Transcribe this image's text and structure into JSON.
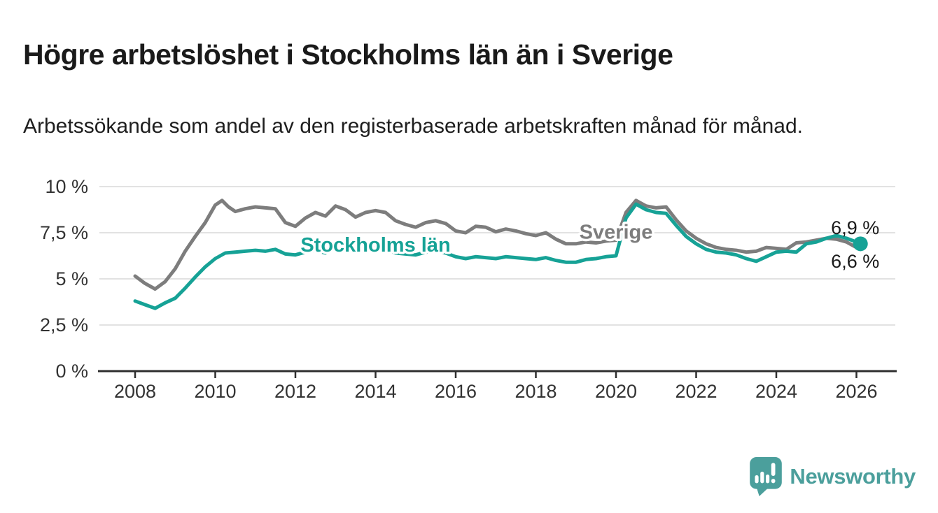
{
  "header": {
    "title": "Högre arbetslöshet i Stockholms län än i Sverige",
    "subtitle": "Arbetssökande som andel av den registerbaserade arbetskraften månad för månad."
  },
  "footer": {
    "brand": "Newsworthy",
    "brand_color": "#4b9f9c"
  },
  "chart_data": {
    "type": "line",
    "title": "Högre arbetslöshet i Stockholms län än i Sverige",
    "unit": "%",
    "grid": true,
    "x_axis": {
      "ticks": [
        2008,
        2010,
        2012,
        2014,
        2016,
        2018,
        2020,
        2022,
        2024,
        2026
      ],
      "range": [
        2007.1,
        2027
      ]
    },
    "y_axis": {
      "range": [
        0,
        10
      ],
      "ticks": [
        {
          "value": 0,
          "label": "0 %"
        },
        {
          "value": 2.5,
          "label": "2,5 %"
        },
        {
          "value": 5,
          "label": "5 %"
        },
        {
          "value": 7.5,
          "label": "7,5 %"
        },
        {
          "value": 10,
          "label": "10 %"
        }
      ]
    },
    "colors": {
      "sverige": "#7d7d7d",
      "stockholm": "#16a296",
      "grid": "#e2e2e2",
      "axis": "#2f2f2f"
    },
    "series": [
      {
        "name": "Sverige",
        "color": "#7d7d7d",
        "end_label": "6,6 %",
        "end_dot": false,
        "inline_label": {
          "text": "Sverige",
          "year": 2020.0,
          "value": 7.55
        },
        "points": [
          [
            2008.0,
            5.15
          ],
          [
            2008.25,
            4.75
          ],
          [
            2008.5,
            4.45
          ],
          [
            2008.75,
            4.85
          ],
          [
            2009.0,
            5.55
          ],
          [
            2009.25,
            6.5
          ],
          [
            2009.5,
            7.3
          ],
          [
            2009.75,
            8.05
          ],
          [
            2010.0,
            9.0
          ],
          [
            2010.17,
            9.25
          ],
          [
            2010.33,
            8.9
          ],
          [
            2010.5,
            8.65
          ],
          [
            2010.75,
            8.8
          ],
          [
            2011.0,
            8.9
          ],
          [
            2011.25,
            8.85
          ],
          [
            2011.5,
            8.8
          ],
          [
            2011.75,
            8.05
          ],
          [
            2012.0,
            7.85
          ],
          [
            2012.25,
            8.3
          ],
          [
            2012.5,
            8.6
          ],
          [
            2012.75,
            8.4
          ],
          [
            2013.0,
            8.95
          ],
          [
            2013.25,
            8.75
          ],
          [
            2013.5,
            8.35
          ],
          [
            2013.75,
            8.6
          ],
          [
            2014.0,
            8.7
          ],
          [
            2014.25,
            8.6
          ],
          [
            2014.5,
            8.15
          ],
          [
            2014.75,
            7.95
          ],
          [
            2015.0,
            7.8
          ],
          [
            2015.25,
            8.05
          ],
          [
            2015.5,
            8.15
          ],
          [
            2015.75,
            8.0
          ],
          [
            2016.0,
            7.6
          ],
          [
            2016.25,
            7.5
          ],
          [
            2016.5,
            7.85
          ],
          [
            2016.75,
            7.8
          ],
          [
            2017.0,
            7.55
          ],
          [
            2017.25,
            7.7
          ],
          [
            2017.5,
            7.6
          ],
          [
            2017.75,
            7.45
          ],
          [
            2018.0,
            7.35
          ],
          [
            2018.25,
            7.5
          ],
          [
            2018.5,
            7.15
          ],
          [
            2018.75,
            6.9
          ],
          [
            2019.0,
            6.9
          ],
          [
            2019.25,
            7.0
          ],
          [
            2019.5,
            6.95
          ],
          [
            2019.75,
            7.05
          ],
          [
            2020.0,
            7.1
          ],
          [
            2020.25,
            8.6
          ],
          [
            2020.5,
            9.25
          ],
          [
            2020.75,
            8.95
          ],
          [
            2021.0,
            8.85
          ],
          [
            2021.25,
            8.9
          ],
          [
            2021.5,
            8.2
          ],
          [
            2021.75,
            7.6
          ],
          [
            2022.0,
            7.2
          ],
          [
            2022.25,
            6.9
          ],
          [
            2022.5,
            6.7
          ],
          [
            2022.75,
            6.6
          ],
          [
            2023.0,
            6.55
          ],
          [
            2023.25,
            6.45
          ],
          [
            2023.5,
            6.5
          ],
          [
            2023.75,
            6.7
          ],
          [
            2024.0,
            6.65
          ],
          [
            2024.25,
            6.6
          ],
          [
            2024.5,
            6.95
          ],
          [
            2024.75,
            7.0
          ],
          [
            2025.0,
            7.1
          ],
          [
            2025.25,
            7.2
          ],
          [
            2025.5,
            7.15
          ],
          [
            2025.75,
            7.0
          ],
          [
            2026.0,
            6.7
          ],
          [
            2026.1,
            6.6
          ]
        ]
      },
      {
        "name": "Stockholms län",
        "color": "#16a296",
        "end_label": "6,9 %",
        "end_dot": true,
        "inline_label": {
          "text": "Stockholms län",
          "year": 2014.0,
          "value": 6.85
        },
        "points": [
          [
            2008.0,
            3.8
          ],
          [
            2008.25,
            3.6
          ],
          [
            2008.5,
            3.4
          ],
          [
            2008.75,
            3.7
          ],
          [
            2009.0,
            3.95
          ],
          [
            2009.25,
            4.5
          ],
          [
            2009.5,
            5.1
          ],
          [
            2009.75,
            5.65
          ],
          [
            2010.0,
            6.1
          ],
          [
            2010.25,
            6.4
          ],
          [
            2010.5,
            6.45
          ],
          [
            2010.75,
            6.5
          ],
          [
            2011.0,
            6.55
          ],
          [
            2011.25,
            6.5
          ],
          [
            2011.5,
            6.6
          ],
          [
            2011.75,
            6.35
          ],
          [
            2012.0,
            6.3
          ],
          [
            2012.25,
            6.45
          ],
          [
            2012.5,
            6.55
          ],
          [
            2012.75,
            6.4
          ],
          [
            2013.0,
            6.65
          ],
          [
            2013.25,
            6.6
          ],
          [
            2013.5,
            6.5
          ],
          [
            2013.75,
            6.6
          ],
          [
            2014.0,
            6.7
          ],
          [
            2014.25,
            6.6
          ],
          [
            2014.5,
            6.4
          ],
          [
            2014.75,
            6.35
          ],
          [
            2015.0,
            6.3
          ],
          [
            2015.25,
            6.45
          ],
          [
            2015.5,
            6.5
          ],
          [
            2015.75,
            6.4
          ],
          [
            2016.0,
            6.2
          ],
          [
            2016.25,
            6.1
          ],
          [
            2016.5,
            6.2
          ],
          [
            2016.75,
            6.15
          ],
          [
            2017.0,
            6.1
          ],
          [
            2017.25,
            6.2
          ],
          [
            2017.5,
            6.15
          ],
          [
            2017.75,
            6.1
          ],
          [
            2018.0,
            6.05
          ],
          [
            2018.25,
            6.15
          ],
          [
            2018.5,
            6.0
          ],
          [
            2018.75,
            5.9
          ],
          [
            2019.0,
            5.9
          ],
          [
            2019.25,
            6.05
          ],
          [
            2019.5,
            6.1
          ],
          [
            2019.75,
            6.2
          ],
          [
            2020.0,
            6.25
          ],
          [
            2020.25,
            8.3
          ],
          [
            2020.5,
            9.05
          ],
          [
            2020.75,
            8.75
          ],
          [
            2021.0,
            8.6
          ],
          [
            2021.25,
            8.55
          ],
          [
            2021.5,
            7.9
          ],
          [
            2021.75,
            7.3
          ],
          [
            2022.0,
            6.9
          ],
          [
            2022.25,
            6.6
          ],
          [
            2022.5,
            6.45
          ],
          [
            2022.75,
            6.4
          ],
          [
            2023.0,
            6.3
          ],
          [
            2023.25,
            6.1
          ],
          [
            2023.5,
            5.95
          ],
          [
            2023.75,
            6.2
          ],
          [
            2024.0,
            6.45
          ],
          [
            2024.25,
            6.5
          ],
          [
            2024.5,
            6.45
          ],
          [
            2024.75,
            6.9
          ],
          [
            2025.0,
            7.0
          ],
          [
            2025.25,
            7.2
          ],
          [
            2025.5,
            7.35
          ],
          [
            2025.75,
            7.2
          ],
          [
            2026.0,
            7.0
          ],
          [
            2026.1,
            6.9
          ]
        ]
      }
    ]
  }
}
